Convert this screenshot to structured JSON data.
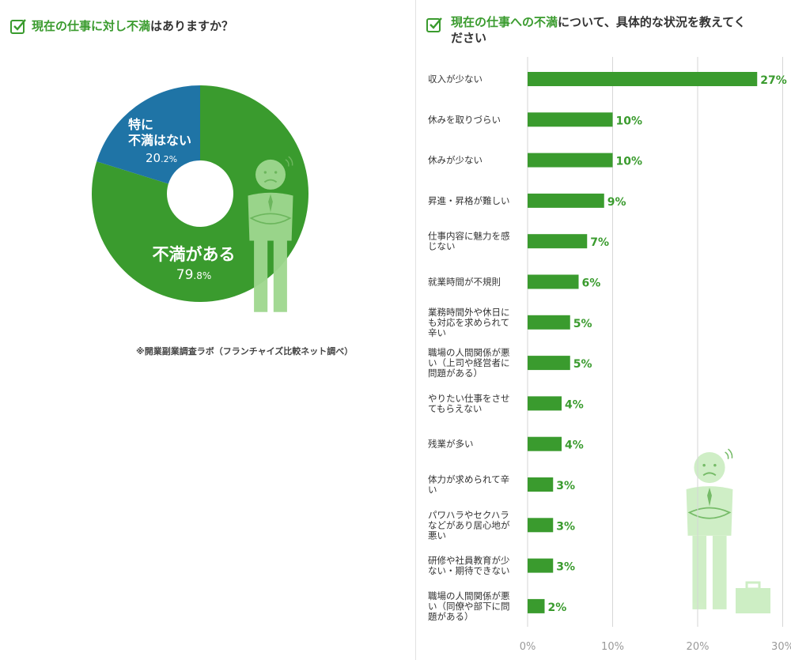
{
  "left": {
    "title_highlight": "現在の仕事に対し不満",
    "title_rest": "はありますか？",
    "source_note": "※開業副業調査ラボ（フランチャイズ比較ネット調べ）"
  },
  "right": {
    "title_highlight": "現在の仕事への不満",
    "title_rest_line1": "について、具体的な状況を教えてく",
    "title_rest_line2": "ださい"
  },
  "colors": {
    "green": "#3a9b2e",
    "blue": "#1f74a6",
    "grid": "#d9d9d9",
    "figure": "#9fd88f"
  },
  "chart_data": [
    {
      "type": "pie",
      "slices": [
        {
          "label_lines": [
            "不満がある"
          ],
          "value": 79.8,
          "value_main": "79",
          "value_dec": ".8%",
          "color": "#3a9b2e"
        },
        {
          "label_lines": [
            "特に",
            "不満はない"
          ],
          "value": 20.2,
          "value_main": "20",
          "value_dec": ".2%",
          "color": "#1f74a6"
        }
      ]
    },
    {
      "type": "bar",
      "orientation": "horizontal",
      "xlim": [
        0,
        30
      ],
      "xticks": [
        "0%",
        "10%",
        "20%",
        "30%"
      ],
      "categories": [
        [
          "収入が少ない"
        ],
        [
          "休みを取りづらい"
        ],
        [
          "休みが少ない"
        ],
        [
          "昇進・昇格が難しい"
        ],
        [
          "仕事内容に魅力を感",
          "じない"
        ],
        [
          "就業時間が不規則"
        ],
        [
          "業務時間外や休日に",
          "も対応を求められて",
          "辛い"
        ],
        [
          "職場の人間関係が悪",
          "い（上司や経営者に",
          "問題がある）"
        ],
        [
          "やりたい仕事をさせ",
          "てもらえない"
        ],
        [
          "残業が多い"
        ],
        [
          "体力が求められて辛",
          "い"
        ],
        [
          "パワハラやセクハラ",
          "などがあり居心地が",
          "悪い"
        ],
        [
          "研修や社員教育が少",
          "ない・期待できない"
        ],
        [
          "職場の人間関係が悪",
          "い（同僚や部下に問",
          "題がある）"
        ]
      ],
      "values": [
        27,
        10,
        10,
        9,
        7,
        6,
        5,
        5,
        4,
        4,
        3,
        3,
        3,
        2
      ],
      "labels": [
        "27%",
        "10%",
        "10%",
        "9%",
        "7%",
        "6%",
        "5%",
        "5%",
        "4%",
        "4%",
        "3%",
        "3%",
        "3%",
        "2%"
      ]
    }
  ]
}
